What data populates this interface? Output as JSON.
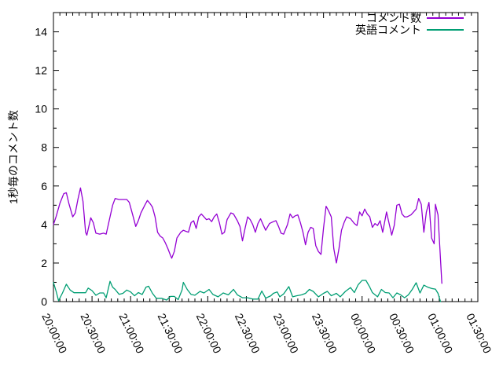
{
  "colors": {
    "axis": "#000000",
    "text": "#000000",
    "background": "#ffffff"
  },
  "chart_data": {
    "type": "line",
    "title": "",
    "xlabel": "",
    "ylabel": "1秒毎のコメント数",
    "grid": false,
    "legend": {
      "position": "top-right-inside",
      "border": false
    },
    "x_axis": {
      "kind": "time",
      "start_minutes": 0,
      "end_minutes": 330,
      "major_tick_interval_minutes": 30,
      "minor_tick_interval_minutes": 5,
      "major_ticks": [
        {
          "t": 0,
          "label": "20:00:00"
        },
        {
          "t": 30,
          "label": "20:30:00"
        },
        {
          "t": 60,
          "label": "21:00:00"
        },
        {
          "t": 90,
          "label": "21:30:00"
        },
        {
          "t": 120,
          "label": "22:00:00"
        },
        {
          "t": 150,
          "label": "22:30:00"
        },
        {
          "t": 180,
          "label": "23:00:00"
        },
        {
          "t": 210,
          "label": "23:30:00"
        },
        {
          "t": 240,
          "label": "00:00:00"
        },
        {
          "t": 270,
          "label": "00:30:00"
        },
        {
          "t": 300,
          "label": "01:00:00"
        },
        {
          "t": 330,
          "label": "01:30:00"
        }
      ]
    },
    "y_axis": {
      "lim": [
        0,
        15
      ],
      "major_ticks": [
        0,
        2,
        4,
        6,
        8,
        10,
        12,
        14
      ],
      "minor_ticks": [
        1,
        3,
        5,
        7,
        9,
        11,
        13
      ]
    },
    "series": [
      {
        "name": "コメント数",
        "color": "#9400d3",
        "points": [
          [
            0,
            4.0
          ],
          [
            2,
            4.4
          ],
          [
            5,
            5.1
          ],
          [
            8,
            5.6
          ],
          [
            10,
            5.65
          ],
          [
            12,
            5.1
          ],
          [
            15,
            4.4
          ],
          [
            17,
            4.6
          ],
          [
            19,
            5.3
          ],
          [
            21,
            5.9
          ],
          [
            23,
            5.2
          ],
          [
            25,
            3.6
          ],
          [
            26,
            3.45
          ],
          [
            29,
            4.35
          ],
          [
            31,
            4.1
          ],
          [
            33,
            3.55
          ],
          [
            36,
            3.5
          ],
          [
            39,
            3.55
          ],
          [
            41,
            3.5
          ],
          [
            44,
            4.4
          ],
          [
            46,
            5.0
          ],
          [
            48,
            5.35
          ],
          [
            51,
            5.3
          ],
          [
            54,
            5.3
          ],
          [
            57,
            5.3
          ],
          [
            59,
            5.15
          ],
          [
            62,
            4.4
          ],
          [
            64,
            3.9
          ],
          [
            66,
            4.2
          ],
          [
            68,
            4.6
          ],
          [
            71,
            5.0
          ],
          [
            73,
            5.25
          ],
          [
            75,
            5.1
          ],
          [
            77,
            4.9
          ],
          [
            79,
            4.4
          ],
          [
            81,
            3.6
          ],
          [
            83,
            3.4
          ],
          [
            85,
            3.3
          ],
          [
            87,
            3.05
          ],
          [
            89,
            2.75
          ],
          [
            91,
            2.4
          ],
          [
            92,
            2.25
          ],
          [
            94,
            2.6
          ],
          [
            96,
            3.3
          ],
          [
            99,
            3.6
          ],
          [
            101,
            3.7
          ],
          [
            103,
            3.65
          ],
          [
            105,
            3.6
          ],
          [
            107,
            4.1
          ],
          [
            109,
            4.2
          ],
          [
            111,
            3.8
          ],
          [
            113,
            4.4
          ],
          [
            115,
            4.55
          ],
          [
            117,
            4.4
          ],
          [
            119,
            4.25
          ],
          [
            121,
            4.3
          ],
          [
            123,
            4.15
          ],
          [
            125,
            4.4
          ],
          [
            127,
            4.55
          ],
          [
            129,
            4.1
          ],
          [
            131,
            3.5
          ],
          [
            133,
            3.6
          ],
          [
            135,
            4.25
          ],
          [
            138,
            4.6
          ],
          [
            140,
            4.55
          ],
          [
            143,
            4.2
          ],
          [
            145,
            3.9
          ],
          [
            147,
            3.15
          ],
          [
            149,
            3.8
          ],
          [
            151,
            4.4
          ],
          [
            153,
            4.25
          ],
          [
            155,
            4.0
          ],
          [
            157,
            3.6
          ],
          [
            159,
            4.05
          ],
          [
            161,
            4.3
          ],
          [
            163,
            4.0
          ],
          [
            165,
            3.7
          ],
          [
            168,
            4.05
          ],
          [
            171,
            4.15
          ],
          [
            173,
            4.2
          ],
          [
            175,
            3.9
          ],
          [
            177,
            3.55
          ],
          [
            179,
            3.5
          ],
          [
            182,
            4.0
          ],
          [
            184,
            4.55
          ],
          [
            186,
            4.35
          ],
          [
            188,
            4.45
          ],
          [
            190,
            4.5
          ],
          [
            192,
            4.1
          ],
          [
            194,
            3.6
          ],
          [
            196,
            2.95
          ],
          [
            198,
            3.6
          ],
          [
            200,
            3.85
          ],
          [
            202,
            3.8
          ],
          [
            204,
            2.9
          ],
          [
            206,
            2.6
          ],
          [
            208,
            2.45
          ],
          [
            210,
            3.8
          ],
          [
            212,
            4.95
          ],
          [
            214,
            4.7
          ],
          [
            216,
            4.4
          ],
          [
            218,
            2.75
          ],
          [
            220,
            2.0
          ],
          [
            222,
            2.75
          ],
          [
            224,
            3.7
          ],
          [
            226,
            4.1
          ],
          [
            228,
            4.4
          ],
          [
            231,
            4.3
          ],
          [
            234,
            4.05
          ],
          [
            236,
            3.95
          ],
          [
            238,
            4.65
          ],
          [
            240,
            4.45
          ],
          [
            242,
            4.8
          ],
          [
            244,
            4.55
          ],
          [
            246,
            4.4
          ],
          [
            248,
            3.85
          ],
          [
            250,
            4.05
          ],
          [
            252,
            3.95
          ],
          [
            254,
            4.2
          ],
          [
            256,
            3.6
          ],
          [
            258,
            4.3
          ],
          [
            259,
            4.65
          ],
          [
            261,
            4.05
          ],
          [
            263,
            3.45
          ],
          [
            265,
            3.95
          ],
          [
            267,
            5.0
          ],
          [
            269,
            5.05
          ],
          [
            271,
            4.55
          ],
          [
            273,
            4.4
          ],
          [
            275,
            4.4
          ],
          [
            278,
            4.5
          ],
          [
            280,
            4.65
          ],
          [
            282,
            4.8
          ],
          [
            284,
            5.35
          ],
          [
            286,
            5.05
          ],
          [
            288,
            3.6
          ],
          [
            290,
            4.65
          ],
          [
            292,
            5.15
          ],
          [
            294,
            3.3
          ],
          [
            296,
            3.0
          ],
          [
            297,
            5.05
          ],
          [
            299,
            4.5
          ],
          [
            302,
            0.95
          ]
        ]
      },
      {
        "name": "英語コメント",
        "color": "#009e73",
        "points": [
          [
            0,
            1.0
          ],
          [
            2,
            0.55
          ],
          [
            4,
            0.05
          ],
          [
            7,
            0.45
          ],
          [
            10,
            0.9
          ],
          [
            13,
            0.6
          ],
          [
            16,
            0.46
          ],
          [
            19,
            0.46
          ],
          [
            22,
            0.46
          ],
          [
            25,
            0.46
          ],
          [
            27,
            0.7
          ],
          [
            30,
            0.57
          ],
          [
            33,
            0.33
          ],
          [
            36,
            0.45
          ],
          [
            39,
            0.45
          ],
          [
            41,
            0.2
          ],
          [
            44,
            1.05
          ],
          [
            46,
            0.75
          ],
          [
            48,
            0.63
          ],
          [
            51,
            0.38
          ],
          [
            54,
            0.43
          ],
          [
            57,
            0.6
          ],
          [
            60,
            0.5
          ],
          [
            63,
            0.3
          ],
          [
            66,
            0.47
          ],
          [
            69,
            0.37
          ],
          [
            72,
            0.75
          ],
          [
            74,
            0.8
          ],
          [
            77,
            0.43
          ],
          [
            80,
            0.17
          ],
          [
            84,
            0.17
          ],
          [
            88,
            0.08
          ],
          [
            91,
            0.27
          ],
          [
            94,
            0.27
          ],
          [
            97,
            0.1
          ],
          [
            100,
            0.6
          ],
          [
            101,
            1.0
          ],
          [
            104,
            0.63
          ],
          [
            107,
            0.37
          ],
          [
            110,
            0.33
          ],
          [
            114,
            0.53
          ],
          [
            117,
            0.45
          ],
          [
            121,
            0.63
          ],
          [
            124,
            0.37
          ],
          [
            128,
            0.25
          ],
          [
            132,
            0.45
          ],
          [
            136,
            0.35
          ],
          [
            140,
            0.63
          ],
          [
            143,
            0.35
          ],
          [
            147,
            0.2
          ],
          [
            151,
            0.2
          ],
          [
            155,
            0.13
          ],
          [
            159,
            0.13
          ],
          [
            162,
            0.55
          ],
          [
            165,
            0.18
          ],
          [
            169,
            0.3
          ],
          [
            171,
            0.43
          ],
          [
            174,
            0.5
          ],
          [
            176,
            0.25
          ],
          [
            179,
            0.4
          ],
          [
            183,
            0.78
          ],
          [
            186,
            0.25
          ],
          [
            189,
            0.3
          ],
          [
            193,
            0.35
          ],
          [
            196,
            0.43
          ],
          [
            199,
            0.63
          ],
          [
            202,
            0.53
          ],
          [
            206,
            0.25
          ],
          [
            210,
            0.43
          ],
          [
            213,
            0.53
          ],
          [
            216,
            0.3
          ],
          [
            220,
            0.43
          ],
          [
            223,
            0.25
          ],
          [
            227,
            0.53
          ],
          [
            231,
            0.73
          ],
          [
            234,
            0.47
          ],
          [
            237,
            0.88
          ],
          [
            240,
            1.1
          ],
          [
            243,
            1.1
          ],
          [
            246,
            0.75
          ],
          [
            248,
            0.47
          ],
          [
            252,
            0.25
          ],
          [
            255,
            0.63
          ],
          [
            258,
            0.47
          ],
          [
            261,
            0.45
          ],
          [
            264,
            0.2
          ],
          [
            267,
            0.45
          ],
          [
            270,
            0.35
          ],
          [
            273,
            0.2
          ],
          [
            276,
            0.35
          ],
          [
            279,
            0.63
          ],
          [
            282,
            0.98
          ],
          [
            285,
            0.45
          ],
          [
            288,
            0.85
          ],
          [
            291,
            0.75
          ],
          [
            294,
            0.68
          ],
          [
            297,
            0.65
          ],
          [
            299,
            0.43
          ],
          [
            301,
            0.0
          ]
        ]
      }
    ]
  }
}
